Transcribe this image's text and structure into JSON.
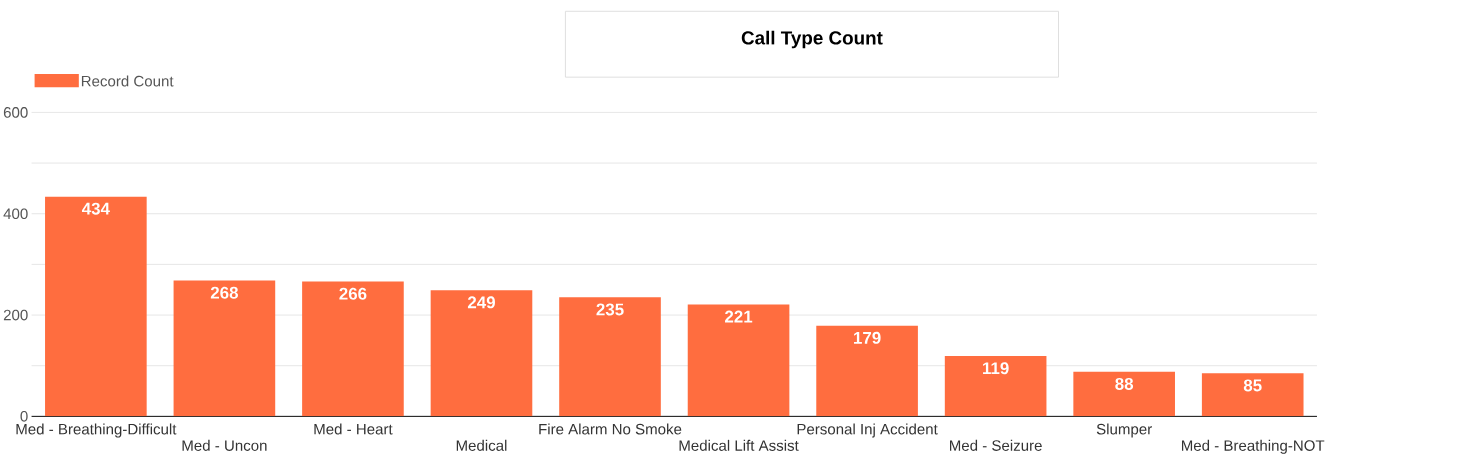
{
  "chart_data": {
    "type": "bar",
    "title": "Call Type Count",
    "categories": [
      "Med - Breathing-Difficult",
      "Med - Uncon",
      "Med - Heart",
      "Medical",
      "Fire Alarm No Smoke",
      "Medical Lift Assist",
      "Personal Inj Accident",
      "Med - Seizure",
      "Slumper",
      "Med - Breathing-NOT"
    ],
    "series": [
      {
        "name": "Record Count",
        "color": "#ff6d3f",
        "values": [
          434,
          268,
          266,
          249,
          235,
          221,
          179,
          119,
          88,
          85
        ]
      }
    ],
    "ylim": [
      0,
      600
    ],
    "yticks": [
      0,
      {
        "value": 100,
        "label": null
      },
      200,
      {
        "value": 300,
        "label": null
      },
      400,
      {
        "value": 500,
        "label": null
      },
      600
    ],
    "grid": "y",
    "legend": "top left",
    "data_labels": true
  }
}
